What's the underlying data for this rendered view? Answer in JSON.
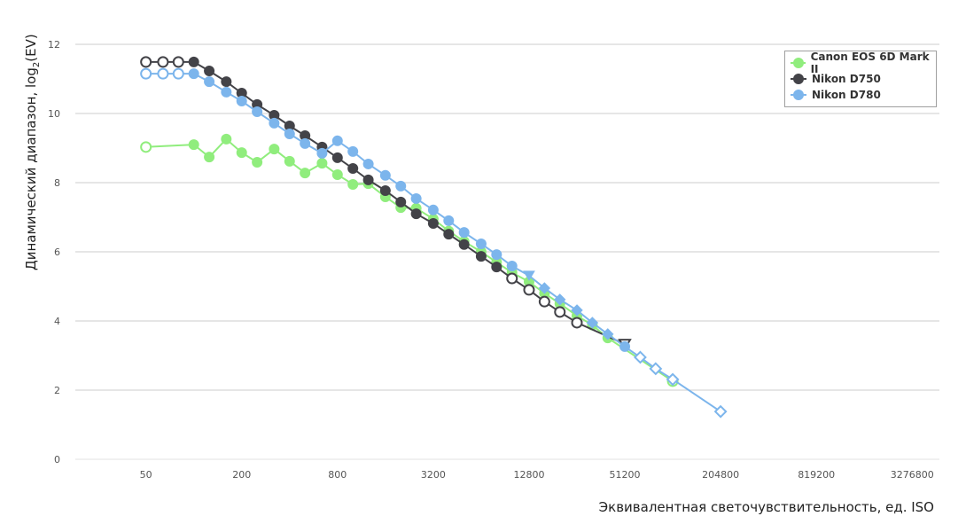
{
  "chart_data": {
    "type": "line",
    "title": "",
    "xlabel": "Эквивалентная светочувствительность, ед. ISO",
    "ylabel": {
      "main": "Динамический диапазон, log",
      "sub": "2",
      "tail": "(EV)"
    },
    "x_scale": "log2",
    "xlim": [
      18,
      4860000
    ],
    "ylim": [
      0,
      12
    ],
    "x_ticks": [
      50,
      200,
      800,
      3200,
      12800,
      51200,
      204800,
      819200,
      3276800
    ],
    "y_ticks": [
      0,
      2,
      4,
      6,
      8,
      10,
      12
    ],
    "grid": "horizontal",
    "legend_position": "top-right",
    "series": [
      {
        "name": "Canon EOS 6D Mark II",
        "color": "#90ed7d",
        "points": [
          {
            "x": 50,
            "y": 9.03,
            "marker": "open-circle"
          },
          {
            "x": 100,
            "y": 9.1,
            "marker": "circle"
          },
          {
            "x": 125,
            "y": 8.74,
            "marker": "circle"
          },
          {
            "x": 160,
            "y": 9.26,
            "marker": "circle"
          },
          {
            "x": 200,
            "y": 8.87,
            "marker": "circle"
          },
          {
            "x": 250,
            "y": 8.59,
            "marker": "circle"
          },
          {
            "x": 320,
            "y": 8.97,
            "marker": "circle"
          },
          {
            "x": 400,
            "y": 8.62,
            "marker": "circle"
          },
          {
            "x": 500,
            "y": 8.28,
            "marker": "circle"
          },
          {
            "x": 640,
            "y": 8.56,
            "marker": "circle"
          },
          {
            "x": 800,
            "y": 8.23,
            "marker": "circle"
          },
          {
            "x": 1000,
            "y": 7.95,
            "marker": "circle"
          },
          {
            "x": 1250,
            "y": 7.97,
            "marker": "circle"
          },
          {
            "x": 1600,
            "y": 7.59,
            "marker": "circle"
          },
          {
            "x": 2000,
            "y": 7.28,
            "marker": "circle"
          },
          {
            "x": 2500,
            "y": 7.26,
            "marker": "circle"
          },
          {
            "x": 3200,
            "y": 6.95,
            "marker": "circle"
          },
          {
            "x": 4000,
            "y": 6.6,
            "marker": "circle"
          },
          {
            "x": 5000,
            "y": 6.3,
            "marker": "circle"
          },
          {
            "x": 6400,
            "y": 6.0,
            "marker": "circle"
          },
          {
            "x": 8000,
            "y": 5.7,
            "marker": "circle"
          },
          {
            "x": 10000,
            "y": 5.4,
            "marker": "circle"
          },
          {
            "x": 12800,
            "y": 5.13,
            "marker": "circle"
          },
          {
            "x": 16000,
            "y": 4.8,
            "marker": "circle"
          },
          {
            "x": 20000,
            "y": 4.5,
            "marker": "circle"
          },
          {
            "x": 25600,
            "y": 4.15,
            "marker": "circle"
          },
          {
            "x": 32000,
            "y": 3.88,
            "marker": "circle"
          },
          {
            "x": 40000,
            "y": 3.51,
            "marker": "circle"
          },
          {
            "x": 102400,
            "y": 2.26,
            "marker": "open-circle"
          }
        ]
      },
      {
        "name": "Nikon D750",
        "color": "#434348",
        "points": [
          {
            "x": 50,
            "y": 11.49,
            "marker": "open-circle"
          },
          {
            "x": 64,
            "y": 11.49,
            "marker": "open-circle"
          },
          {
            "x": 80,
            "y": 11.49,
            "marker": "open-circle"
          },
          {
            "x": 100,
            "y": 11.49,
            "marker": "circle"
          },
          {
            "x": 125,
            "y": 11.23,
            "marker": "circle"
          },
          {
            "x": 160,
            "y": 10.92,
            "marker": "circle"
          },
          {
            "x": 200,
            "y": 10.59,
            "marker": "circle"
          },
          {
            "x": 250,
            "y": 10.26,
            "marker": "circle"
          },
          {
            "x": 320,
            "y": 9.95,
            "marker": "circle"
          },
          {
            "x": 400,
            "y": 9.64,
            "marker": "circle"
          },
          {
            "x": 500,
            "y": 9.36,
            "marker": "circle"
          },
          {
            "x": 640,
            "y": 9.03,
            "marker": "circle"
          },
          {
            "x": 800,
            "y": 8.72,
            "marker": "circle"
          },
          {
            "x": 1000,
            "y": 8.41,
            "marker": "circle"
          },
          {
            "x": 1250,
            "y": 8.08,
            "marker": "circle"
          },
          {
            "x": 1600,
            "y": 7.77,
            "marker": "circle"
          },
          {
            "x": 2000,
            "y": 7.44,
            "marker": "circle"
          },
          {
            "x": 2500,
            "y": 7.1,
            "marker": "circle"
          },
          {
            "x": 3200,
            "y": 6.82,
            "marker": "circle"
          },
          {
            "x": 4000,
            "y": 6.51,
            "marker": "circle"
          },
          {
            "x": 5000,
            "y": 6.21,
            "marker": "circle"
          },
          {
            "x": 6400,
            "y": 5.87,
            "marker": "circle"
          },
          {
            "x": 8000,
            "y": 5.56,
            "marker": "circle"
          },
          {
            "x": 10000,
            "y": 5.23,
            "marker": "open-circle"
          },
          {
            "x": 12800,
            "y": 4.9,
            "marker": "open-circle"
          },
          {
            "x": 16000,
            "y": 4.56,
            "marker": "open-circle"
          },
          {
            "x": 20000,
            "y": 4.26,
            "marker": "open-circle"
          },
          {
            "x": 25600,
            "y": 3.95,
            "marker": "open-circle"
          },
          {
            "x": 51200,
            "y": 3.33,
            "marker": "open-triangle"
          }
        ]
      },
      {
        "name": "Nikon D780",
        "color": "#7cb5ec",
        "points": [
          {
            "x": 50,
            "y": 11.15,
            "marker": "open-circle"
          },
          {
            "x": 64,
            "y": 11.15,
            "marker": "open-circle"
          },
          {
            "x": 80,
            "y": 11.15,
            "marker": "open-circle"
          },
          {
            "x": 100,
            "y": 11.15,
            "marker": "circle"
          },
          {
            "x": 125,
            "y": 10.92,
            "marker": "circle"
          },
          {
            "x": 160,
            "y": 10.62,
            "marker": "circle"
          },
          {
            "x": 200,
            "y": 10.36,
            "marker": "circle"
          },
          {
            "x": 250,
            "y": 10.05,
            "marker": "circle"
          },
          {
            "x": 320,
            "y": 9.72,
            "marker": "circle"
          },
          {
            "x": 400,
            "y": 9.41,
            "marker": "circle"
          },
          {
            "x": 500,
            "y": 9.13,
            "marker": "circle"
          },
          {
            "x": 640,
            "y": 8.85,
            "marker": "circle"
          },
          {
            "x": 800,
            "y": 9.21,
            "marker": "circle"
          },
          {
            "x": 1000,
            "y": 8.9,
            "marker": "circle"
          },
          {
            "x": 1250,
            "y": 8.54,
            "marker": "circle"
          },
          {
            "x": 1600,
            "y": 8.21,
            "marker": "circle"
          },
          {
            "x": 2000,
            "y": 7.9,
            "marker": "circle"
          },
          {
            "x": 2500,
            "y": 7.54,
            "marker": "circle"
          },
          {
            "x": 3200,
            "y": 7.21,
            "marker": "circle"
          },
          {
            "x": 4000,
            "y": 6.9,
            "marker": "circle"
          },
          {
            "x": 5000,
            "y": 6.56,
            "marker": "circle"
          },
          {
            "x": 6400,
            "y": 6.23,
            "marker": "circle"
          },
          {
            "x": 8000,
            "y": 5.92,
            "marker": "circle"
          },
          {
            "x": 10000,
            "y": 5.59,
            "marker": "circle"
          },
          {
            "x": 12800,
            "y": 5.31,
            "marker": "triangle"
          },
          {
            "x": 16000,
            "y": 4.95,
            "marker": "diamond"
          },
          {
            "x": 20000,
            "y": 4.62,
            "marker": "diamond"
          },
          {
            "x": 25600,
            "y": 4.31,
            "marker": "diamond"
          },
          {
            "x": 32000,
            "y": 3.95,
            "marker": "diamond"
          },
          {
            "x": 40000,
            "y": 3.62,
            "marker": "diamond"
          },
          {
            "x": 51200,
            "y": 3.26,
            "marker": "circle"
          },
          {
            "x": 64000,
            "y": 2.95,
            "marker": "open-diamond"
          },
          {
            "x": 80000,
            "y": 2.62,
            "marker": "open-diamond"
          },
          {
            "x": 102400,
            "y": 2.31,
            "marker": "open-diamond"
          },
          {
            "x": 204800,
            "y": 1.38,
            "marker": "open-diamond"
          }
        ]
      }
    ]
  }
}
